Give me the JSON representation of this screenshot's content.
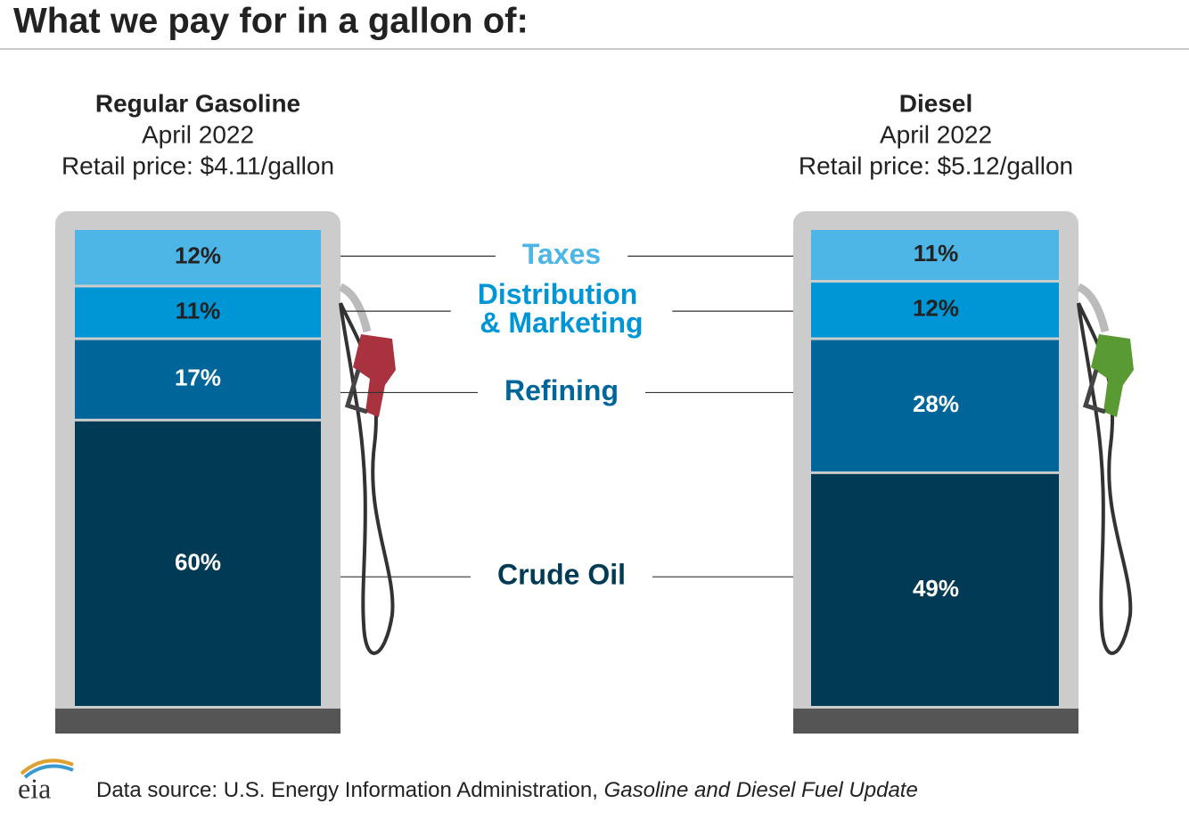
{
  "title": "What we pay for in a gallon of:",
  "chart_data": {
    "type": "stacked-bar",
    "categories": [
      "Regular Gasoline",
      "Diesel"
    ],
    "periods": [
      "April 2022",
      "April 2022"
    ],
    "prices": [
      "Retail price: $4.11/gallon",
      "Retail price: $5.12/gallon"
    ],
    "series": [
      {
        "name": "Taxes",
        "color": "#4db6e6",
        "label_color": "#222222",
        "values": [
          12,
          11
        ],
        "value_labels": [
          "12%",
          "11%"
        ]
      },
      {
        "name": "Distribution & Marketing",
        "color": "#0096d6",
        "label_color": "#222222",
        "values": [
          11,
          12
        ],
        "value_labels": [
          "11%",
          "12%"
        ]
      },
      {
        "name": "Refining",
        "color": "#006699",
        "label_color": "#ffffff",
        "values": [
          17,
          28
        ],
        "value_labels": [
          "17%",
          "28%"
        ]
      },
      {
        "name": "Crude Oil",
        "color": "#003a54",
        "label_color": "#ffffff",
        "values": [
          60,
          49
        ],
        "value_labels": [
          "60%",
          "49%"
        ]
      }
    ]
  },
  "logo": "eia",
  "source_prefix": "Data source: U.S. Energy Information Administration, ",
  "source_title": "Gasoline and Diesel Fuel Update"
}
